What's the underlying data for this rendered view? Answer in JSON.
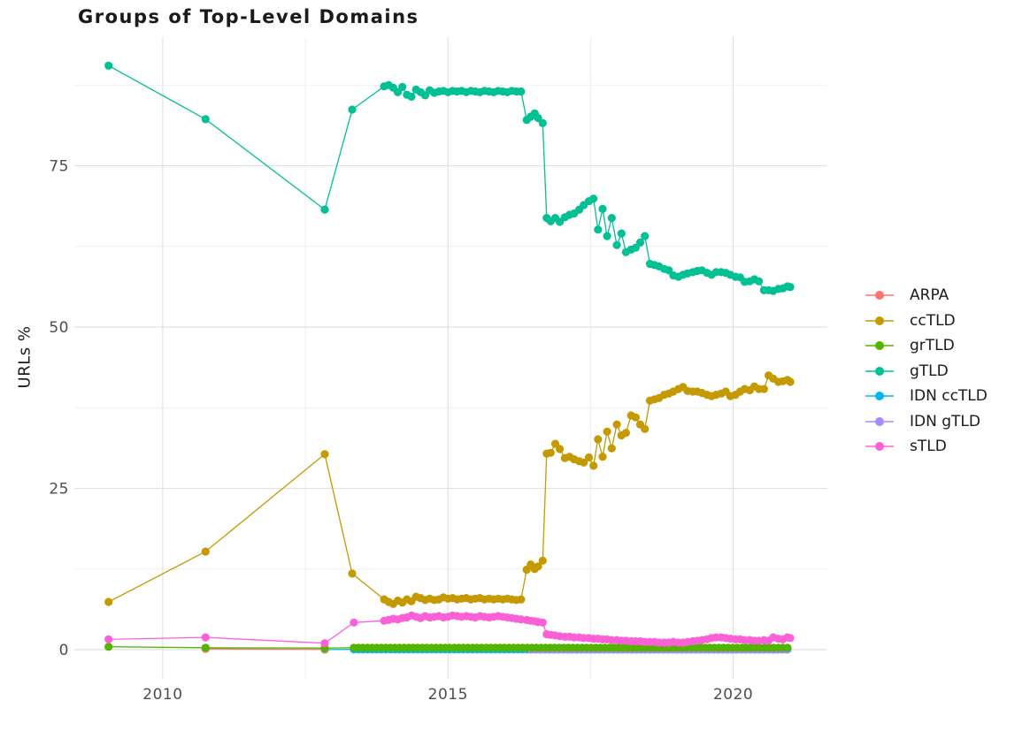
{
  "chart_data": {
    "type": "line",
    "title": "Groups of Top-Level Domains",
    "xlabel": "",
    "ylabel": "URLs %",
    "xlim": [
      2008.45,
      2021.65
    ],
    "ylim": [
      -4.52,
      94.93
    ],
    "grid": "major and minor, light gray on white",
    "legend_position": "right",
    "x_ticks": [
      {
        "value": 2010,
        "label": "2010"
      },
      {
        "value": 2015,
        "label": "2015"
      },
      {
        "value": 2020,
        "label": "2020"
      }
    ],
    "x_minor": [
      2012.5,
      2017.5
    ],
    "y_ticks": [
      {
        "value": 0,
        "label": "0"
      },
      {
        "value": 25,
        "label": "25"
      },
      {
        "value": 50,
        "label": "50"
      },
      {
        "value": 75,
        "label": "75"
      }
    ],
    "y_minor": [
      12.5,
      37.5,
      62.5,
      87.5
    ],
    "series": [
      {
        "name": "ARPA",
        "color": "#F8766D",
        "points": [
          [
            2010.75,
            0.12
          ],
          [
            2012.84,
            0.06
          ]
        ]
      },
      {
        "name": "ccTLD",
        "color": "#C49A00",
        "points": [
          [
            2009.05,
            7.4
          ],
          [
            2010.75,
            15.2
          ],
          [
            2012.84,
            30.3
          ],
          [
            2013.32,
            11.8
          ],
          [
            2013.88,
            7.8
          ],
          [
            2013.96,
            7.4
          ],
          [
            2014.04,
            7.1
          ],
          [
            2014.12,
            7.6
          ],
          [
            2014.2,
            7.3
          ],
          [
            2014.28,
            7.8
          ],
          [
            2014.36,
            7.5
          ],
          [
            2014.44,
            8.2
          ],
          [
            2014.52,
            8.0
          ],
          [
            2014.6,
            7.7
          ],
          [
            2014.68,
            7.9
          ],
          [
            2014.76,
            7.7
          ],
          [
            2014.84,
            7.8
          ],
          [
            2014.92,
            8.1
          ],
          [
            2015.0,
            7.9
          ],
          [
            2015.08,
            8.0
          ],
          [
            2015.16,
            7.8
          ],
          [
            2015.24,
            7.9
          ],
          [
            2015.32,
            8.0
          ],
          [
            2015.4,
            7.8
          ],
          [
            2015.48,
            7.9
          ],
          [
            2015.56,
            8.0
          ],
          [
            2015.64,
            7.8
          ],
          [
            2015.72,
            7.9
          ],
          [
            2015.8,
            7.8
          ],
          [
            2015.88,
            7.9
          ],
          [
            2015.96,
            7.8
          ],
          [
            2016.04,
            7.9
          ],
          [
            2016.12,
            7.8
          ],
          [
            2016.2,
            7.7
          ],
          [
            2016.28,
            7.8
          ],
          [
            2016.38,
            12.4
          ],
          [
            2016.45,
            13.2
          ],
          [
            2016.52,
            12.5
          ],
          [
            2016.58,
            12.9
          ],
          [
            2016.66,
            13.8
          ],
          [
            2016.73,
            30.4
          ],
          [
            2016.8,
            30.5
          ],
          [
            2016.88,
            31.9
          ],
          [
            2016.96,
            31.1
          ],
          [
            2017.05,
            29.7
          ],
          [
            2017.13,
            29.9
          ],
          [
            2017.21,
            29.5
          ],
          [
            2017.3,
            29.2
          ],
          [
            2017.38,
            29.0
          ],
          [
            2017.47,
            29.8
          ],
          [
            2017.55,
            28.5
          ],
          [
            2017.63,
            32.6
          ],
          [
            2017.71,
            29.9
          ],
          [
            2017.79,
            33.8
          ],
          [
            2017.87,
            31.2
          ],
          [
            2017.96,
            34.9
          ],
          [
            2018.04,
            33.2
          ],
          [
            2018.12,
            33.6
          ],
          [
            2018.21,
            36.3
          ],
          [
            2018.29,
            36.0
          ],
          [
            2018.37,
            34.9
          ],
          [
            2018.45,
            34.2
          ],
          [
            2018.54,
            38.6
          ],
          [
            2018.62,
            38.8
          ],
          [
            2018.7,
            39.0
          ],
          [
            2018.79,
            39.5
          ],
          [
            2018.87,
            39.7
          ],
          [
            2018.95,
            40.0
          ],
          [
            2019.04,
            40.4
          ],
          [
            2019.12,
            40.7
          ],
          [
            2019.2,
            40.1
          ],
          [
            2019.29,
            40.0
          ],
          [
            2019.37,
            40.0
          ],
          [
            2019.45,
            39.8
          ],
          [
            2019.54,
            39.5
          ],
          [
            2019.62,
            39.3
          ],
          [
            2019.7,
            39.5
          ],
          [
            2019.79,
            39.7
          ],
          [
            2019.87,
            40.0
          ],
          [
            2019.95,
            39.3
          ],
          [
            2020.04,
            39.5
          ],
          [
            2020.12,
            40.0
          ],
          [
            2020.2,
            40.4
          ],
          [
            2020.29,
            40.2
          ],
          [
            2020.37,
            40.8
          ],
          [
            2020.45,
            40.4
          ],
          [
            2020.54,
            40.4
          ],
          [
            2020.62,
            42.5
          ],
          [
            2020.7,
            42.0
          ],
          [
            2020.79,
            41.5
          ],
          [
            2020.87,
            41.6
          ],
          [
            2020.95,
            41.8
          ],
          [
            2021.0,
            41.5
          ]
        ]
      },
      {
        "name": "grTLD",
        "color": "#53B400",
        "points": [
          [
            2009.05,
            0.45
          ],
          [
            2010.75,
            0.3
          ],
          [
            2012.84,
            0.25
          ]
        ],
        "flat": {
          "from": 2013.35,
          "to": 2021.0,
          "step": 0.08,
          "value": 0.3
        }
      },
      {
        "name": "gTLD",
        "color": "#00C094",
        "points": [
          [
            2009.05,
            90.5
          ],
          [
            2010.75,
            82.2
          ],
          [
            2012.84,
            68.2
          ],
          [
            2013.32,
            83.7
          ],
          [
            2013.88,
            87.3
          ],
          [
            2013.96,
            87.5
          ],
          [
            2014.04,
            87.1
          ],
          [
            2014.12,
            86.4
          ],
          [
            2014.2,
            87.2
          ],
          [
            2014.28,
            86.0
          ],
          [
            2014.36,
            85.7
          ],
          [
            2014.44,
            86.8
          ],
          [
            2014.52,
            86.4
          ],
          [
            2014.6,
            85.9
          ],
          [
            2014.68,
            86.7
          ],
          [
            2014.76,
            86.3
          ],
          [
            2014.84,
            86.5
          ],
          [
            2014.92,
            86.6
          ],
          [
            2015.0,
            86.4
          ],
          [
            2015.08,
            86.6
          ],
          [
            2015.16,
            86.5
          ],
          [
            2015.24,
            86.6
          ],
          [
            2015.32,
            86.4
          ],
          [
            2015.4,
            86.6
          ],
          [
            2015.48,
            86.5
          ],
          [
            2015.56,
            86.4
          ],
          [
            2015.64,
            86.6
          ],
          [
            2015.72,
            86.5
          ],
          [
            2015.8,
            86.4
          ],
          [
            2015.88,
            86.6
          ],
          [
            2015.96,
            86.5
          ],
          [
            2016.04,
            86.4
          ],
          [
            2016.12,
            86.6
          ],
          [
            2016.2,
            86.5
          ],
          [
            2016.28,
            86.5
          ],
          [
            2016.38,
            82.1
          ],
          [
            2016.45,
            82.6
          ],
          [
            2016.52,
            83.1
          ],
          [
            2016.58,
            82.4
          ],
          [
            2016.66,
            81.6
          ],
          [
            2016.73,
            66.9
          ],
          [
            2016.8,
            66.4
          ],
          [
            2016.88,
            66.9
          ],
          [
            2016.96,
            66.3
          ],
          [
            2017.05,
            67.0
          ],
          [
            2017.13,
            67.4
          ],
          [
            2017.21,
            67.6
          ],
          [
            2017.3,
            68.2
          ],
          [
            2017.38,
            68.9
          ],
          [
            2017.47,
            69.5
          ],
          [
            2017.55,
            69.9
          ],
          [
            2017.63,
            65.1
          ],
          [
            2017.71,
            68.3
          ],
          [
            2017.79,
            64.1
          ],
          [
            2017.87,
            66.9
          ],
          [
            2017.96,
            62.7
          ],
          [
            2018.04,
            64.5
          ],
          [
            2018.12,
            61.6
          ],
          [
            2018.21,
            62.0
          ],
          [
            2018.29,
            62.3
          ],
          [
            2018.37,
            63.1
          ],
          [
            2018.45,
            64.1
          ],
          [
            2018.54,
            59.8
          ],
          [
            2018.62,
            59.6
          ],
          [
            2018.7,
            59.4
          ],
          [
            2018.79,
            59.0
          ],
          [
            2018.87,
            58.8
          ],
          [
            2018.95,
            58.0
          ],
          [
            2019.04,
            57.8
          ],
          [
            2019.12,
            58.1
          ],
          [
            2019.2,
            58.3
          ],
          [
            2019.29,
            58.5
          ],
          [
            2019.37,
            58.7
          ],
          [
            2019.45,
            58.8
          ],
          [
            2019.54,
            58.4
          ],
          [
            2019.62,
            58.1
          ],
          [
            2019.7,
            58.5
          ],
          [
            2019.79,
            58.5
          ],
          [
            2019.87,
            58.4
          ],
          [
            2019.95,
            58.1
          ],
          [
            2020.04,
            57.8
          ],
          [
            2020.12,
            57.7
          ],
          [
            2020.2,
            57.0
          ],
          [
            2020.29,
            57.1
          ],
          [
            2020.37,
            57.4
          ],
          [
            2020.45,
            57.1
          ],
          [
            2020.54,
            55.7
          ],
          [
            2020.62,
            55.7
          ],
          [
            2020.7,
            55.6
          ],
          [
            2020.79,
            55.9
          ],
          [
            2020.87,
            56.0
          ],
          [
            2020.95,
            56.3
          ],
          [
            2021.0,
            56.2
          ]
        ]
      },
      {
        "name": "IDN ccTLD",
        "color": "#00B6EB",
        "points": [
          [
            2012.84,
            0.02
          ]
        ],
        "flat": {
          "from": 2013.35,
          "to": 2021.0,
          "step": 0.08,
          "value": 0.05
        }
      },
      {
        "name": "IDN gTLD",
        "color": "#A58AFF",
        "flat": {
          "from": 2016.45,
          "to": 2021.0,
          "step": 0.08,
          "value": 0.02
        }
      },
      {
        "name": "sTLD",
        "color": "#FB61D7",
        "points": [
          [
            2009.05,
            1.6
          ],
          [
            2010.75,
            1.9
          ],
          [
            2012.84,
            1.0
          ],
          [
            2013.35,
            4.2
          ],
          [
            2013.88,
            4.5
          ],
          [
            2013.96,
            4.6
          ],
          [
            2014.04,
            4.8
          ],
          [
            2014.12,
            4.7
          ],
          [
            2014.2,
            4.9
          ],
          [
            2014.28,
            5.0
          ],
          [
            2014.36,
            5.3
          ],
          [
            2014.44,
            5.1
          ],
          [
            2014.52,
            4.9
          ],
          [
            2014.6,
            5.2
          ],
          [
            2014.68,
            5.0
          ],
          [
            2014.76,
            5.1
          ],
          [
            2014.84,
            5.2
          ],
          [
            2014.92,
            5.0
          ],
          [
            2015.0,
            5.1
          ],
          [
            2015.08,
            5.3
          ],
          [
            2015.16,
            5.2
          ],
          [
            2015.24,
            5.1
          ],
          [
            2015.32,
            5.2
          ],
          [
            2015.4,
            5.1
          ],
          [
            2015.48,
            5.0
          ],
          [
            2015.56,
            5.2
          ],
          [
            2015.64,
            5.1
          ],
          [
            2015.72,
            5.0
          ],
          [
            2015.8,
            5.1
          ],
          [
            2015.88,
            5.2
          ],
          [
            2015.96,
            5.1
          ],
          [
            2016.04,
            5.0
          ],
          [
            2016.12,
            4.9
          ],
          [
            2016.2,
            4.8
          ],
          [
            2016.28,
            4.7
          ],
          [
            2016.38,
            4.6
          ],
          [
            2016.45,
            4.5
          ],
          [
            2016.52,
            4.4
          ],
          [
            2016.58,
            4.3
          ],
          [
            2016.66,
            4.2
          ],
          [
            2016.73,
            2.4
          ],
          [
            2016.8,
            2.3
          ],
          [
            2016.88,
            2.2
          ],
          [
            2016.96,
            2.1
          ],
          [
            2017.05,
            2.0
          ],
          [
            2017.13,
            2.0
          ],
          [
            2017.21,
            1.9
          ],
          [
            2017.3,
            1.9
          ],
          [
            2017.38,
            1.8
          ],
          [
            2017.47,
            1.8
          ],
          [
            2017.55,
            1.7
          ],
          [
            2017.63,
            1.7
          ],
          [
            2017.71,
            1.6
          ],
          [
            2017.79,
            1.6
          ],
          [
            2017.87,
            1.5
          ],
          [
            2017.96,
            1.5
          ],
          [
            2018.04,
            1.4
          ],
          [
            2018.12,
            1.4
          ],
          [
            2018.21,
            1.3
          ],
          [
            2018.29,
            1.3
          ],
          [
            2018.37,
            1.3
          ],
          [
            2018.45,
            1.2
          ],
          [
            2018.54,
            1.2
          ],
          [
            2018.62,
            1.2
          ],
          [
            2018.7,
            1.1
          ],
          [
            2018.79,
            1.1
          ],
          [
            2018.87,
            1.1
          ],
          [
            2018.95,
            1.2
          ],
          [
            2019.04,
            1.1
          ],
          [
            2019.12,
            1.1
          ],
          [
            2019.2,
            1.2
          ],
          [
            2019.29,
            1.3
          ],
          [
            2019.37,
            1.4
          ],
          [
            2019.45,
            1.5
          ],
          [
            2019.54,
            1.6
          ],
          [
            2019.62,
            1.8
          ],
          [
            2019.7,
            1.9
          ],
          [
            2019.79,
            1.9
          ],
          [
            2019.87,
            1.8
          ],
          [
            2019.95,
            1.7
          ],
          [
            2020.04,
            1.6
          ],
          [
            2020.12,
            1.6
          ],
          [
            2020.2,
            1.5
          ],
          [
            2020.29,
            1.5
          ],
          [
            2020.37,
            1.4
          ],
          [
            2020.45,
            1.4
          ],
          [
            2020.54,
            1.5
          ],
          [
            2020.62,
            1.4
          ],
          [
            2020.7,
            1.9
          ],
          [
            2020.79,
            1.7
          ],
          [
            2020.87,
            1.6
          ],
          [
            2020.95,
            1.9
          ],
          [
            2021.0,
            1.8
          ]
        ]
      }
    ]
  }
}
